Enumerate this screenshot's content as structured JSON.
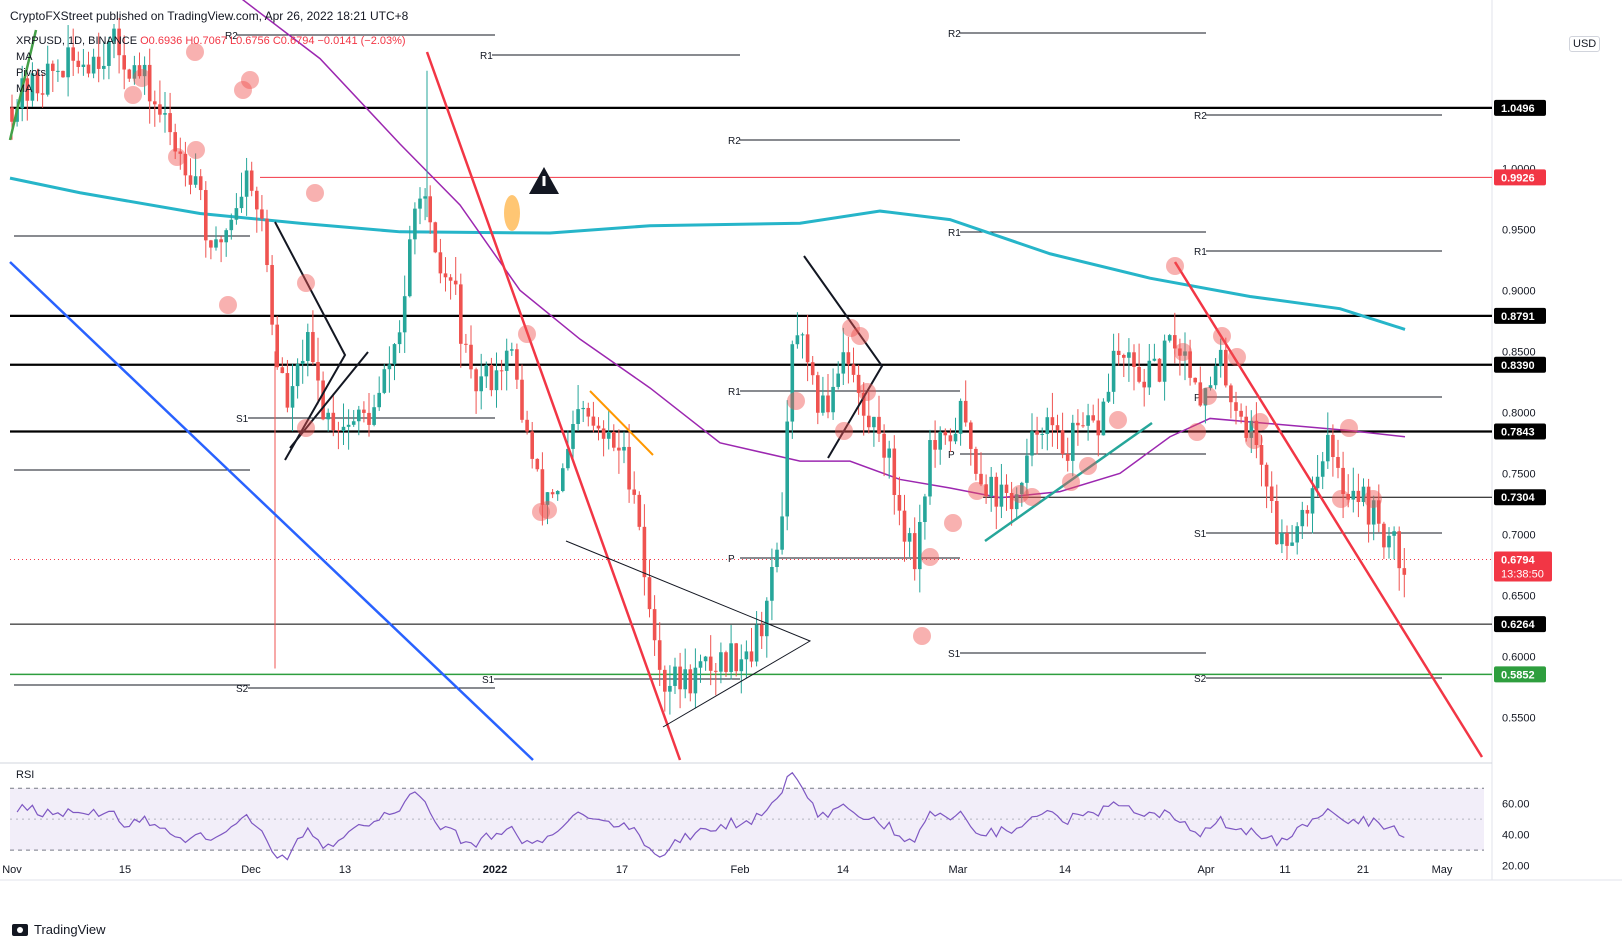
{
  "header": {
    "published": "CryptoFXStreet published on TradingView.com, Apr 26, 2022 18:21 UTC+8"
  },
  "legend": {
    "symbol": "XRPUSD, 1D, BINANCE",
    "open": "O0.6936",
    "high": "H0.7067",
    "low": "L0.6756",
    "close": "C0.6794",
    "change": "−0.0141 (−2.03%)",
    "indicators": [
      "MA",
      "Pivots",
      "MA"
    ]
  },
  "currency": "USD",
  "footer": {
    "brand": "TradingView"
  },
  "chart_data": {
    "type": "candlestick",
    "symbol": "XRPUSD",
    "timeframe": "1D",
    "exchange": "BINANCE",
    "ylim": [
      0.515,
      1.12
    ],
    "y_ticks": [
      "0.5500",
      "0.6000",
      "0.6500",
      "0.7000",
      "0.7500",
      "0.8000",
      "0.8500",
      "0.9000",
      "0.9500",
      "1.0000"
    ],
    "x_ticks": [
      "Nov",
      "15",
      "Dec",
      "13",
      "2022",
      "17",
      "Feb",
      "14",
      "Mar",
      "14",
      "Apr",
      "11",
      "21",
      "May"
    ],
    "price_labels": [
      {
        "value": 1.0496,
        "label": "1.0496",
        "color": "#000000"
      },
      {
        "value": 0.9926,
        "label": "0.9926",
        "color": "#f23645"
      },
      {
        "value": 0.8791,
        "label": "0.8791",
        "color": "#000000"
      },
      {
        "value": 0.839,
        "label": "0.8390",
        "color": "#000000"
      },
      {
        "value": 0.7843,
        "label": "0.7843",
        "color": "#000000"
      },
      {
        "value": 0.7304,
        "label": "0.7304",
        "color": "#000000"
      },
      {
        "value": 0.6264,
        "label": "0.6264",
        "color": "#000000"
      },
      {
        "value": 0.5852,
        "label": "0.5852",
        "color": "#2e9e3e"
      }
    ],
    "last_price": {
      "value": 0.6794,
      "label": "0.6794",
      "countdown": "13:38:50",
      "color": "#f23645"
    },
    "pivot_labels": [
      "R2",
      "R1",
      "S1",
      "S2",
      "P"
    ],
    "rsi": {
      "label": "RSI",
      "ticks": [
        "60.00",
        "40.00",
        "20.00"
      ],
      "upper": 70,
      "lower": 30
    },
    "colors": {
      "up": "#26a69a",
      "down": "#ef5350",
      "ma200": "#26b5c9",
      "ma50": "#9c27b0",
      "trend": "#f23645",
      "channel": "#2962ff",
      "rsi": "#7e57c2",
      "support_green": "#43a047"
    }
  }
}
